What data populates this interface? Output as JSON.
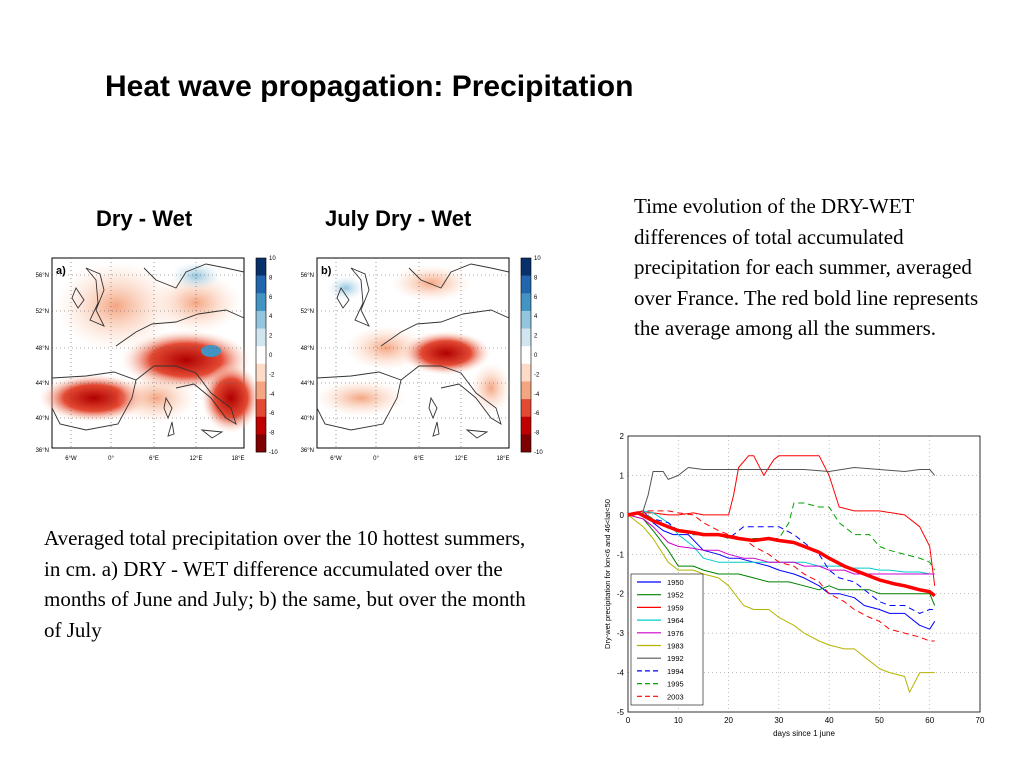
{
  "slide": {
    "title": "Heat wave propagation: Precipitation",
    "caption_right": "Time evolution of the DRY-WET differences of total accumulated precipitation for each summer, averaged over France. The red bold line represents the average among all the summers.",
    "caption_left": "Averaged total precipitation over the 10 hottest summers, in cm. a) DRY - WET difference accumulated over the months of June and July; b) the same, but over the month of July"
  },
  "maps": [
    {
      "heading": "Dry - Wet",
      "panel_label": "a)",
      "lat_ticks": [
        "56°N",
        "52°N",
        "48°N",
        "44°N",
        "40°N",
        "36°N"
      ],
      "lon_ticks": [
        "6°W",
        "0°",
        "6°E",
        "12°E",
        "18°E"
      ],
      "colorbar_ticks": [
        "10",
        "8",
        "6",
        "4",
        "2",
        "0",
        "-2",
        "-4",
        "-6",
        "-8",
        "-10"
      ]
    },
    {
      "heading": "July Dry - Wet",
      "panel_label": "b)",
      "lat_ticks": [
        "56°N",
        "52°N",
        "48°N",
        "44°N",
        "40°N",
        "36°N"
      ],
      "lon_ticks": [
        "6°W",
        "0°",
        "6°E",
        "12°E",
        "18°E"
      ],
      "colorbar_ticks": [
        "10",
        "8",
        "6",
        "4",
        "2",
        "0",
        "-2",
        "-4",
        "-6",
        "-8",
        "-10"
      ]
    }
  ],
  "colors": {
    "colorbar": [
      "#08306b",
      "#2166ac",
      "#4393c3",
      "#92c5de",
      "#d1e5f0",
      "#ffffff",
      "#fddbc7",
      "#f4a582",
      "#e34a33",
      "#c00000",
      "#7f0000"
    ]
  },
  "chart_data": {
    "type": "line",
    "xlabel": "days since 1 june",
    "ylabel": "Dry-wet precipitation for lon<6 and 46<lat<50",
    "xlim": [
      0,
      70
    ],
    "ylim": [
      -5,
      2
    ],
    "xticks": [
      0,
      10,
      20,
      30,
      40,
      50,
      60,
      70
    ],
    "yticks": [
      2,
      1,
      0,
      -1,
      -2,
      -3,
      -4,
      -5
    ],
    "grid": true,
    "legend_position": "bottom-left",
    "series": [
      {
        "name": "1950",
        "color": "#0000ff",
        "dash": "solid",
        "width": 1,
        "x": [
          0,
          3,
          5,
          7,
          9,
          12,
          15,
          18,
          20,
          22,
          25,
          28,
          30,
          33,
          35,
          38,
          40,
          42,
          45,
          47,
          50,
          52,
          55,
          58,
          60,
          61
        ],
        "y": [
          0,
          0.1,
          -0.2,
          -0.4,
          -0.5,
          -0.5,
          -0.9,
          -1.0,
          -1.1,
          -1.1,
          -1.2,
          -1.3,
          -1.4,
          -1.5,
          -1.6,
          -1.8,
          -2.0,
          -2.0,
          -2.1,
          -2.3,
          -2.4,
          -2.5,
          -2.5,
          -2.8,
          -2.9,
          -2.7
        ]
      },
      {
        "name": "1952",
        "color": "#008000",
        "dash": "solid",
        "width": 1,
        "x": [
          0,
          3,
          5,
          8,
          10,
          13,
          15,
          18,
          20,
          22,
          25,
          28,
          30,
          32,
          35,
          38,
          40,
          42,
          45,
          48,
          50,
          52,
          55,
          58,
          60,
          61
        ],
        "y": [
          0,
          -0.1,
          -0.4,
          -0.9,
          -1.3,
          -1.3,
          -1.4,
          -1.5,
          -1.5,
          -1.5,
          -1.6,
          -1.7,
          -1.7,
          -1.7,
          -1.8,
          -1.9,
          -1.8,
          -1.9,
          -1.9,
          -1.9,
          -2.0,
          -2.0,
          -2.0,
          -2.0,
          -2.0,
          -2.3
        ]
      },
      {
        "name": "1959",
        "color": "#ff0000",
        "dash": "solid",
        "width": 1,
        "x": [
          0,
          3,
          5,
          8,
          10,
          13,
          15,
          18,
          20,
          21,
          22,
          24,
          25,
          27,
          29,
          30,
          33,
          35,
          38,
          40,
          42,
          45,
          50,
          55,
          58,
          60,
          61
        ],
        "y": [
          0,
          0.05,
          0.05,
          0,
          0,
          0.05,
          0,
          0,
          0,
          0.5,
          1.2,
          1.5,
          1.5,
          1.0,
          1.4,
          1.5,
          1.5,
          1.5,
          1.5,
          1.0,
          0.2,
          0.1,
          0.1,
          0.0,
          -0.3,
          -0.8,
          -1.8
        ]
      },
      {
        "name": "1964",
        "color": "#00cccc",
        "dash": "solid",
        "width": 1,
        "x": [
          0,
          3,
          5,
          8,
          10,
          13,
          15,
          18,
          20,
          25,
          30,
          35,
          38,
          40,
          42,
          45,
          48,
          50,
          52,
          55,
          58,
          60,
          61
        ],
        "y": [
          0,
          0.1,
          0.05,
          -0.2,
          -0.5,
          -0.8,
          -1.1,
          -1.2,
          -1.2,
          -1.2,
          -1.2,
          -1.2,
          -1.3,
          -1.3,
          -1.3,
          -1.35,
          -1.35,
          -1.4,
          -1.4,
          -1.45,
          -1.45,
          -1.5,
          -1.5
        ]
      },
      {
        "name": "1976",
        "color": "#cc00cc",
        "dash": "solid",
        "width": 1,
        "x": [
          0,
          3,
          5,
          8,
          10,
          13,
          15,
          18,
          20,
          23,
          25,
          28,
          30,
          33,
          35,
          38,
          40,
          43,
          45,
          48,
          50,
          53,
          55,
          58,
          60,
          61
        ],
        "y": [
          0,
          -0.1,
          -0.3,
          -0.7,
          -0.8,
          -0.85,
          -0.9,
          -0.9,
          -1.0,
          -1.1,
          -1.1,
          -1.2,
          -1.2,
          -1.2,
          -1.3,
          -1.3,
          -1.4,
          -1.4,
          -1.5,
          -1.5,
          -1.5,
          -1.5,
          -1.5,
          -1.5,
          -1.5,
          -1.5
        ]
      },
      {
        "name": "1983",
        "color": "#b5b500",
        "dash": "solid",
        "width": 1,
        "x": [
          0,
          3,
          5,
          8,
          10,
          13,
          15,
          18,
          20,
          23,
          25,
          28,
          30,
          33,
          35,
          38,
          40,
          43,
          45,
          47,
          50,
          52,
          55,
          56,
          58,
          60,
          61
        ],
        "y": [
          0,
          -0.3,
          -0.6,
          -1.2,
          -1.4,
          -1.4,
          -1.5,
          -1.6,
          -1.8,
          -2.3,
          -2.4,
          -2.4,
          -2.6,
          -2.8,
          -3.0,
          -3.2,
          -3.3,
          -3.4,
          -3.4,
          -3.6,
          -3.9,
          -4.0,
          -4.1,
          -4.5,
          -4.0,
          -4.0,
          -4.0
        ]
      },
      {
        "name": "1992",
        "color": "#555555",
        "dash": "solid",
        "width": 1,
        "x": [
          0,
          3,
          4,
          5,
          7,
          8,
          10,
          12,
          15,
          20,
          25,
          30,
          35,
          40,
          45,
          50,
          55,
          58,
          60,
          61
        ],
        "y": [
          0,
          0.1,
          0.5,
          1.1,
          1.1,
          0.9,
          1.0,
          1.2,
          1.15,
          1.15,
          1.15,
          1.15,
          1.15,
          1.1,
          1.2,
          1.15,
          1.1,
          1.15,
          1.15,
          1.0
        ]
      },
      {
        "name": "1994",
        "color": "#0000ff",
        "dash": "6,4",
        "width": 1,
        "x": [
          0,
          3,
          5,
          8,
          10,
          13,
          15,
          18,
          20,
          23,
          25,
          28,
          30,
          33,
          35,
          38,
          40,
          42,
          45,
          48,
          50,
          52,
          55,
          58,
          60,
          61
        ],
        "y": [
          0,
          0.05,
          -0.1,
          -0.2,
          -0.4,
          -0.5,
          -0.5,
          -0.5,
          -0.6,
          -0.3,
          -0.3,
          -0.3,
          -0.3,
          -0.5,
          -0.7,
          -1.0,
          -1.4,
          -1.6,
          -1.7,
          -2.0,
          -2.2,
          -2.3,
          -2.3,
          -2.5,
          -2.4,
          -2.4
        ]
      },
      {
        "name": "1995",
        "color": "#00a000",
        "dash": "6,4",
        "width": 1,
        "x": [
          0,
          3,
          5,
          8,
          10,
          13,
          15,
          18,
          20,
          23,
          25,
          28,
          30,
          32,
          33,
          35,
          38,
          40,
          42,
          45,
          48,
          50,
          52,
          55,
          58,
          60,
          61
        ],
        "y": [
          0,
          0.05,
          -0.1,
          -0.3,
          -0.4,
          -0.5,
          -0.5,
          -0.5,
          -0.6,
          -0.6,
          -0.6,
          -0.6,
          -0.6,
          -0.2,
          0.3,
          0.3,
          0.2,
          0.2,
          -0.2,
          -0.5,
          -0.5,
          -0.8,
          -0.9,
          -1.0,
          -1.1,
          -1.2,
          -1.4
        ]
      },
      {
        "name": "2003",
        "color": "#ff0000",
        "dash": "6,4",
        "width": 1,
        "x": [
          0,
          3,
          5,
          8,
          10,
          13,
          15,
          18,
          20,
          23,
          25,
          28,
          30,
          33,
          35,
          38,
          40,
          43,
          45,
          48,
          50,
          52,
          55,
          58,
          60,
          61
        ],
        "y": [
          0,
          0.1,
          0.1,
          0.1,
          0.05,
          0,
          -0.2,
          -0.4,
          -0.5,
          -0.6,
          -0.8,
          -1.0,
          -1.2,
          -1.3,
          -1.5,
          -1.7,
          -2.0,
          -2.2,
          -2.4,
          -2.6,
          -2.7,
          -2.9,
          -3.0,
          -3.1,
          -3.2,
          -3.2
        ]
      },
      {
        "color": "#ff0000",
        "dash": "solid",
        "width": 3.5,
        "x": [
          0,
          2,
          5,
          8,
          10,
          13,
          15,
          18,
          20,
          22,
          25,
          28,
          30,
          33,
          35,
          38,
          40,
          43,
          45,
          48,
          50,
          53,
          55,
          58,
          60,
          61
        ],
        "y": [
          0,
          0.05,
          -0.15,
          -0.3,
          -0.4,
          -0.45,
          -0.5,
          -0.5,
          -0.55,
          -0.6,
          -0.65,
          -0.6,
          -0.65,
          -0.7,
          -0.8,
          -0.95,
          -1.1,
          -1.3,
          -1.4,
          -1.55,
          -1.65,
          -1.75,
          -1.8,
          -1.9,
          -1.95,
          -2.05
        ]
      }
    ]
  }
}
